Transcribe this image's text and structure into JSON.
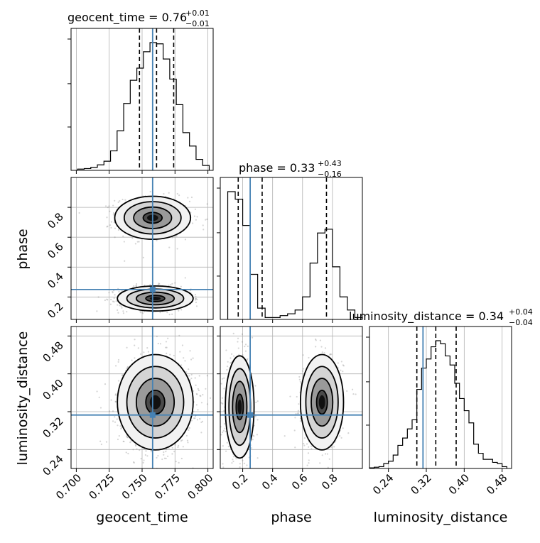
{
  "chart_data": {
    "type": "corner",
    "parameters": [
      "geocent_time",
      "phase",
      "luminosity_distance"
    ],
    "truths": {
      "geocent_time": 0.758,
      "phase": 0.25,
      "luminosity_distance": 0.313
    },
    "titles": [
      {
        "param": "geocent_time",
        "text": "geocent_time = 0.76",
        "plus": "+0.01",
        "minus": "−0.01"
      },
      {
        "param": "phase",
        "text": "phase = 0.33",
        "plus": "+0.43",
        "minus": "−0.16"
      },
      {
        "param": "luminosity_distance",
        "text": "luminosity_distance = 0.34",
        "plus": "+0.04",
        "minus": "−0.04"
      }
    ],
    "axes": {
      "geocent_time": {
        "range": [
          0.696,
          0.804
        ],
        "ticks": [
          0.7,
          0.725,
          0.75,
          0.775,
          0.8
        ],
        "tick_labels": [
          "0.700",
          "0.725",
          "0.750",
          "0.775",
          "0.800"
        ],
        "label": "geocent_time"
      },
      "phase": {
        "range": [
          0.05,
          1.0
        ],
        "ticks": [
          0.2,
          0.4,
          0.6,
          0.8
        ],
        "tick_labels": [
          "0.2",
          "0.4",
          "0.6",
          "0.8"
        ],
        "label": "phase"
      },
      "luminosity_distance": {
        "range": [
          0.2,
          0.5
        ],
        "ticks": [
          0.24,
          0.32,
          0.4,
          0.48
        ],
        "tick_labels": [
          "0.24",
          "0.32",
          "0.40",
          "0.48"
        ],
        "label": "luminosity_distance"
      }
    },
    "histograms": [
      {
        "param": "geocent_time",
        "edges": [
          0.701,
          0.706,
          0.711,
          0.716,
          0.721,
          0.726,
          0.731,
          0.736,
          0.741,
          0.746,
          0.751,
          0.756,
          0.761,
          0.766,
          0.771,
          0.776,
          0.781,
          0.786,
          0.791,
          0.796,
          0.801
        ],
        "counts": [
          2,
          3,
          5,
          9,
          15,
          32,
          65,
          110,
          148,
          168,
          195,
          210,
          208,
          183,
          150,
          108,
          62,
          40,
          18,
          8
        ],
        "quantiles": [
          0.748,
          0.761,
          0.774
        ]
      },
      {
        "param": "phase",
        "edges": [
          0.1,
          0.15,
          0.2,
          0.25,
          0.3,
          0.35,
          0.4,
          0.45,
          0.5,
          0.55,
          0.6,
          0.65,
          0.7,
          0.75,
          0.8,
          0.85,
          0.9,
          0.95,
          1.0
        ],
        "counts": [
          340,
          320,
          250,
          120,
          30,
          5,
          5,
          10,
          15,
          25,
          60,
          150,
          230,
          240,
          140,
          60,
          25,
          5
        ],
        "quantiles": [
          0.17,
          0.33,
          0.76
        ]
      },
      {
        "param": "luminosity_distance",
        "edges": [
          0.2,
          0.21,
          0.22,
          0.23,
          0.24,
          0.25,
          0.26,
          0.27,
          0.28,
          0.29,
          0.3,
          0.31,
          0.32,
          0.33,
          0.34,
          0.35,
          0.36,
          0.37,
          0.38,
          0.39,
          0.4,
          0.41,
          0.42,
          0.43,
          0.44,
          0.45,
          0.46,
          0.47,
          0.48,
          0.49
        ],
        "counts": [
          1,
          2,
          3,
          8,
          12,
          22,
          38,
          50,
          65,
          80,
          130,
          165,
          180,
          200,
          210,
          205,
          185,
          170,
          140,
          115,
          95,
          75,
          40,
          25,
          15,
          15,
          10,
          8,
          3
        ],
        "quantiles": [
          0.3,
          0.34,
          0.383
        ]
      }
    ],
    "scatter": {
      "phase_vs_geocent_time": {
        "modes": [
          {
            "center": [
              0.758,
              0.73
            ],
            "spread": [
              0.012,
              0.06
            ],
            "weight": 0.5
          },
          {
            "center": [
              0.76,
              0.19
            ],
            "spread": [
              0.012,
              0.035
            ],
            "weight": 0.5
          }
        ]
      },
      "luminosity_distance_vs_geocent_time": {
        "modes": [
          {
            "center": [
              0.76,
              0.34
            ],
            "spread": [
              0.012,
              0.042
            ],
            "weight": 1.0
          }
        ]
      },
      "luminosity_distance_vs_phase": {
        "modes": [
          {
            "center": [
              0.18,
              0.33
            ],
            "spread": [
              0.04,
              0.045
            ],
            "weight": 0.5
          },
          {
            "center": [
              0.73,
              0.34
            ],
            "spread": [
              0.06,
              0.042
            ],
            "weight": 0.5
          }
        ]
      }
    },
    "grid": true
  }
}
